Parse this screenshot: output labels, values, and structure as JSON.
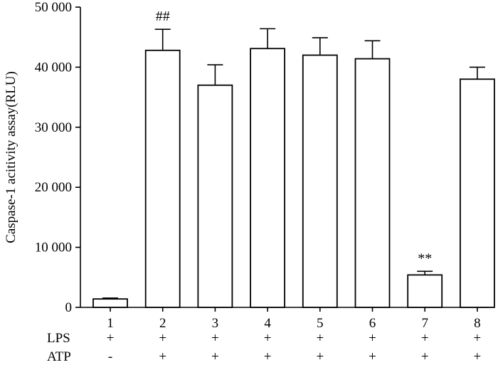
{
  "chart_data": {
    "type": "bar",
    "title": "",
    "xlabel": "",
    "ylabel": "Caspase-1 acitivity assay(RLU)",
    "ylim": [
      0,
      50000
    ],
    "yticks": [
      0,
      10000,
      20000,
      30000,
      40000,
      50000
    ],
    "ytick_labels": [
      "0",
      "10 000",
      "20 000",
      "30 000",
      "40 000",
      "50 000"
    ],
    "categories": [
      "1",
      "2",
      "3",
      "4",
      "5",
      "6",
      "7",
      "8"
    ],
    "values": [
      1400,
      42800,
      37000,
      43100,
      42000,
      41400,
      5400,
      38000
    ],
    "errors": [
      150,
      3500,
      3400,
      3300,
      2900,
      3000,
      600,
      2000
    ],
    "annotations": [
      {
        "category": "2",
        "text": "##"
      },
      {
        "category": "7",
        "text": "**"
      }
    ],
    "conditions": [
      {
        "label": "LPS",
        "signs": [
          "+",
          "+",
          "+",
          "+",
          "+",
          "+",
          "+",
          "+"
        ]
      },
      {
        "label": "ATP",
        "signs": [
          "-",
          "+",
          "+",
          "+",
          "+",
          "+",
          "+",
          "+"
        ]
      }
    ],
    "bar_color": "#ffffff",
    "line_color": "#000000",
    "grid": false,
    "legend": "none"
  }
}
